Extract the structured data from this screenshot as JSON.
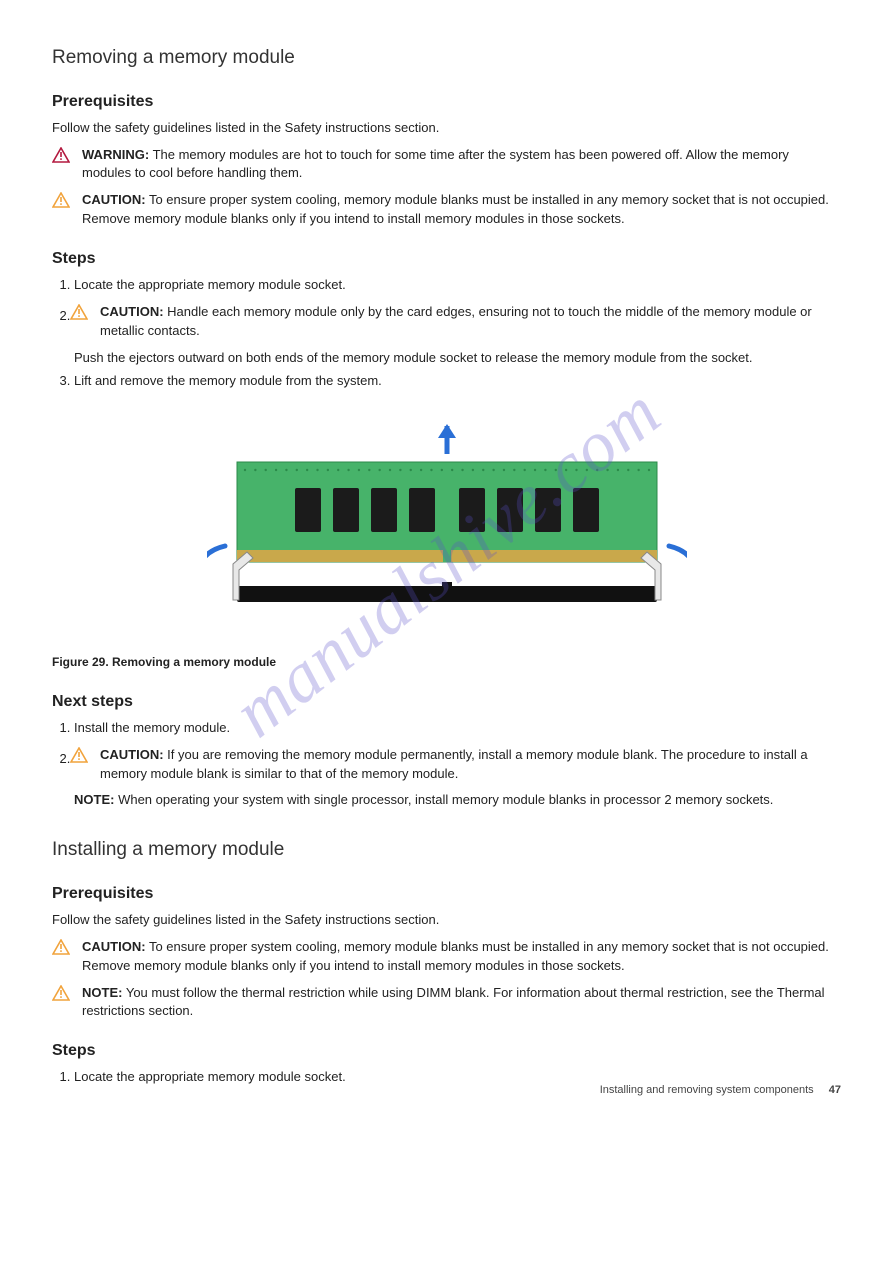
{
  "watermark": "manualshive.com",
  "removal": {
    "title": "Removing a memory module",
    "prereq_heading": "Prerequisites",
    "prereq_text": "Follow the safety guidelines listed in the Safety instructions section.",
    "admon_warning": {
      "label": "WARNING:",
      "text": "The memory modules are hot to touch for some time after the system has been powered off. Allow the memory modules to cool before handling them."
    },
    "admon_caution_esd": {
      "label": "CAUTION:",
      "text": "To ensure proper system cooling, memory module blanks must be installed in any memory socket that is not occupied. Remove memory module blanks only if you intend to install memory modules in those sockets."
    },
    "steps_heading": "Steps",
    "step1": "Locate the appropriate memory module socket.",
    "step2_caution": {
      "label": "CAUTION:",
      "text": "Handle each memory module only by the card edges, ensuring not to touch the middle of the memory module or metallic contacts."
    },
    "step2": "Push the ejectors outward on both ends of the memory module socket to release the memory module from the socket.",
    "step3": "Lift and remove the memory module from the system.",
    "figure_caption": "Figure 29. Removing a memory module",
    "next_heading": "Next steps",
    "next1": "Install the memory module.",
    "next2_caution": {
      "label": "CAUTION:",
      "text": "If you are removing the memory module permanently, install a memory module blank. The procedure to install a memory module blank is similar to that of the memory module."
    },
    "next2_note": {
      "label": "NOTE:",
      "text": "When operating your system with single processor, install memory module blanks in processor 2 memory sockets."
    }
  },
  "install": {
    "title": "Installing a memory module",
    "prereq_heading": "Prerequisites",
    "prereq_text": "Follow the safety guidelines listed in the Safety instructions section.",
    "admon_caution_esd": {
      "label": "CAUTION:",
      "text": "To ensure proper system cooling, memory module blanks must be installed in any memory socket that is not occupied. Remove memory module blanks only if you intend to install memory modules in those sockets."
    },
    "admon_note": {
      "label": "NOTE:",
      "text": "You must follow the thermal restriction while using DIMM blank. For information about thermal restriction, see the Thermal restrictions section."
    },
    "steps_heading": "Steps",
    "step1": "Locate the appropriate memory module socket."
  },
  "figure": {
    "pcb_color": "#47b36a",
    "pcb_dark": "#2b8a4a",
    "chip_color": "#1b1b1b",
    "contacts_color": "#c9a84b",
    "slot_color": "#111111",
    "ejector_color": "#e8e8e8",
    "ejector_stroke": "#888888",
    "arrow_color": "#2a6fd6",
    "chip_count": 8,
    "chip_w": 26,
    "chip_h": 44,
    "chip_gap": 12,
    "pcb_w": 420,
    "pcb_h": 100,
    "contacts_h": 12
  },
  "footer": {
    "label": "Installing and removing system components",
    "page": "47"
  }
}
